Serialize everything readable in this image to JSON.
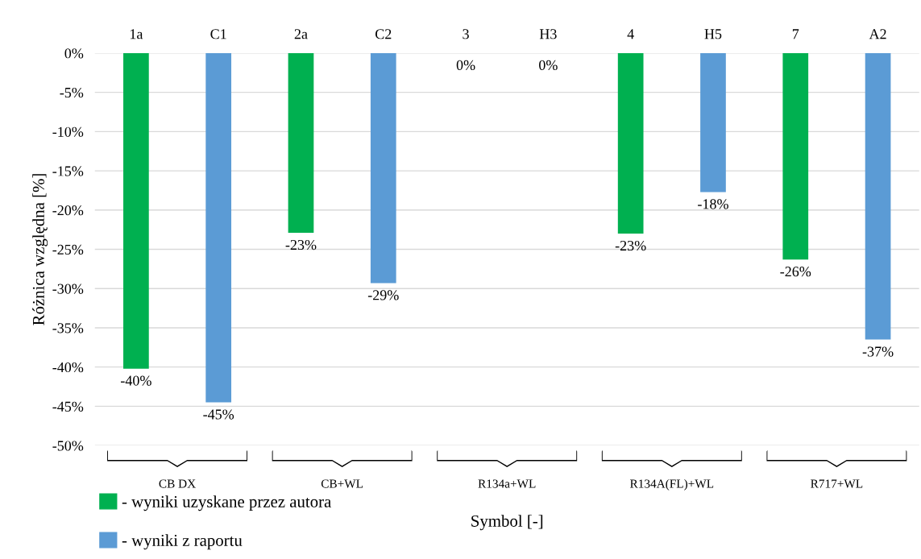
{
  "chart_data": {
    "type": "bar",
    "xlabel": "Symbol [-]",
    "ylabel": "Różnica względna [%]",
    "categories": [
      "1a",
      "C1",
      "2a",
      "C2",
      "3",
      "H3",
      "4",
      "H5",
      "7",
      "A2"
    ],
    "series": [
      {
        "name": "- wyniki uzyskane przez autora",
        "color": "#00b050",
        "values": [
          -40.2,
          null,
          -22.9,
          null,
          0,
          null,
          -23.0,
          null,
          -26.3,
          null
        ],
        "value_labels": [
          "-40%",
          null,
          "-23%",
          null,
          "0%",
          null,
          "-23%",
          null,
          "-26%",
          null
        ]
      },
      {
        "name": "- wyniki z raportu",
        "color": "#5b9bd5",
        "values": [
          null,
          -44.5,
          null,
          -29.3,
          null,
          0,
          null,
          -17.7,
          null,
          -36.5
        ],
        "value_labels": [
          null,
          "-45%",
          null,
          "-29%",
          null,
          "0%",
          null,
          "-18%",
          null,
          "-37%"
        ]
      }
    ],
    "annotations": [
      "CB DX",
      "CB+WL",
      "R134a+WL",
      "R134A(FL)+WL",
      "R717+WL"
    ],
    "ylim": [
      -50,
      0
    ],
    "yticks": [
      {
        "value": 0,
        "label": "0%"
      },
      {
        "value": -5,
        "label": "-5%"
      },
      {
        "value": -10,
        "label": "-10%"
      },
      {
        "value": -15,
        "label": "-15%"
      },
      {
        "value": -20,
        "label": "-20%"
      },
      {
        "value": -25,
        "label": "-25%"
      },
      {
        "value": -30,
        "label": "-30%"
      },
      {
        "value": -35,
        "label": "-35%"
      },
      {
        "value": -40,
        "label": "-40%"
      },
      {
        "value": -45,
        "label": "-45%"
      },
      {
        "value": -50,
        "label": "-50%"
      }
    ],
    "grid": "y",
    "legend": "bottom left"
  }
}
